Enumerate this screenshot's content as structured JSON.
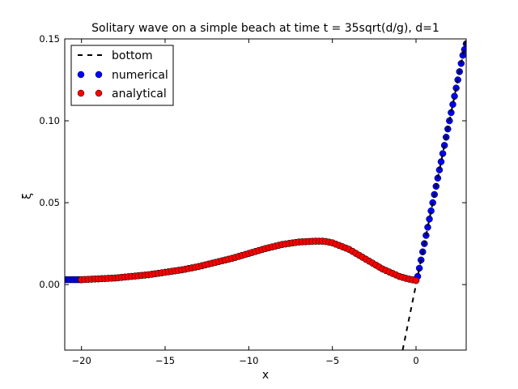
{
  "chart_data": {
    "type": "line",
    "title": "Solitary wave on a simple beach at time t = 35sqrt(d/g), d=1",
    "xlabel": "x",
    "ylabel": "ξ",
    "xlim": [
      -21,
      3
    ],
    "ylim": [
      -0.04,
      0.15
    ],
    "xticks": [
      -20,
      -15,
      -10,
      -5,
      0
    ],
    "yticks": [
      0.0,
      0.05,
      0.1,
      0.15
    ],
    "xtick_labels": [
      "−20",
      "−15",
      "−10",
      "−5",
      "0"
    ],
    "ytick_labels": [
      "0.00",
      "0.05",
      "0.10",
      "0.15"
    ],
    "grid": false,
    "legend_position": "top-left",
    "series": [
      {
        "name": "bottom",
        "style": "dashed-line",
        "color": "#000000",
        "x": [
          -0.8,
          0.0,
          3.0
        ],
        "y": [
          -0.04,
          0.0,
          0.15
        ]
      },
      {
        "name": "numerical",
        "style": "markers",
        "color": "#0000ff",
        "x": [
          -21.0,
          -20.5,
          -20.0,
          -19.0,
          -18.0,
          -17.0,
          -16.0,
          -15.0,
          -14.0,
          -13.0,
          -12.0,
          -11.0,
          -10.0,
          -9.0,
          -8.0,
          -7.0,
          -6.0,
          -5.5,
          -5.0,
          -4.0,
          -3.0,
          -2.0,
          -1.0,
          -0.5,
          0.0,
          0.1,
          0.4,
          0.8,
          1.2,
          1.6,
          2.0,
          2.4,
          2.8,
          3.0
        ],
        "y": [
          0.003,
          0.003,
          0.003,
          0.0035,
          0.004,
          0.005,
          0.006,
          0.0075,
          0.009,
          0.011,
          0.0135,
          0.016,
          0.019,
          0.022,
          0.0245,
          0.026,
          0.0265,
          0.0265,
          0.0255,
          0.0215,
          0.0155,
          0.0095,
          0.005,
          0.0035,
          0.0025,
          0.005,
          0.02,
          0.04,
          0.06,
          0.08,
          0.1,
          0.12,
          0.14,
          0.147
        ]
      },
      {
        "name": "analytical",
        "style": "markers",
        "color": "#ff0000",
        "x": [
          -20.0,
          -19.0,
          -18.0,
          -17.0,
          -16.0,
          -15.0,
          -14.0,
          -13.0,
          -12.0,
          -11.0,
          -10.0,
          -9.0,
          -8.0,
          -7.0,
          -6.0,
          -5.5,
          -5.0,
          -4.0,
          -3.0,
          -2.0,
          -1.0,
          -0.5,
          0.0
        ],
        "y": [
          0.003,
          0.0035,
          0.004,
          0.005,
          0.006,
          0.0075,
          0.009,
          0.011,
          0.0135,
          0.016,
          0.019,
          0.022,
          0.0245,
          0.026,
          0.0265,
          0.0265,
          0.0255,
          0.0215,
          0.0155,
          0.0095,
          0.005,
          0.0035,
          0.0025
        ]
      }
    ]
  }
}
